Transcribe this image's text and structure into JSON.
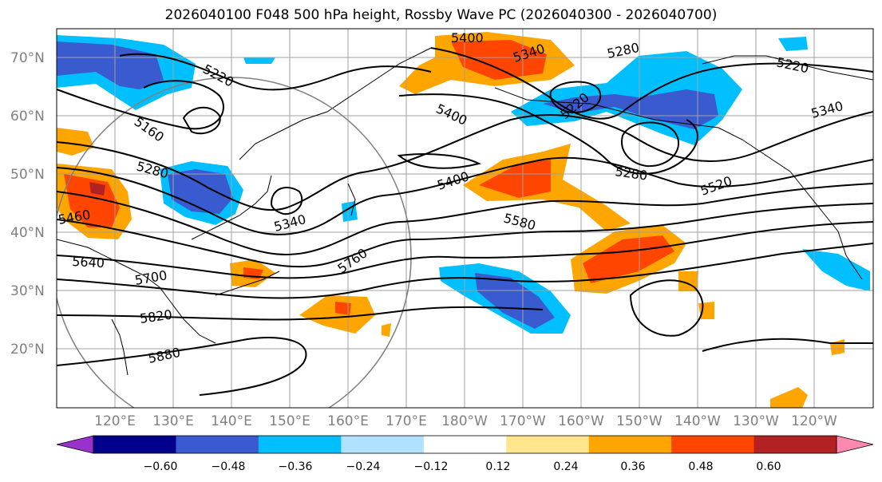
{
  "title": "2026040100 F048 500 hPa height, Rossby Wave PC (2026040300 - 2026040700)",
  "lat_labels": [
    "70°N",
    "60°N",
    "50°N",
    "40°N",
    "30°N",
    "20°N"
  ],
  "lon_labels": [
    "120°E",
    "130°E",
    "140°E",
    "150°E",
    "160°E",
    "170°E",
    "180°W",
    "170°W",
    "160°W",
    "150°W",
    "140°W",
    "130°W",
    "120°W"
  ],
  "contour_labels": [
    "5400",
    "5340",
    "5280",
    "5220",
    "5220",
    "5220",
    "5340",
    "5160",
    "5400",
    "5280",
    "5280",
    "5400",
    "5520",
    "5460",
    "5340",
    "5580",
    "5640",
    "5760",
    "5700",
    "5820",
    "5880"
  ],
  "colorbar": {
    "ticks": [
      "−0.60",
      "−0.48",
      "−0.36",
      "−0.24",
      "−0.12",
      "0.12",
      "0.24",
      "0.36",
      "0.48",
      "0.60"
    ],
    "colors": [
      "#9932cc",
      "#00008b",
      "#3a5bd0",
      "#00bfff",
      "#b0e2ff",
      "#ffffff",
      "#ffe68c",
      "#ffa500",
      "#ff4500",
      "#b22222",
      "#ff88b0"
    ]
  }
}
